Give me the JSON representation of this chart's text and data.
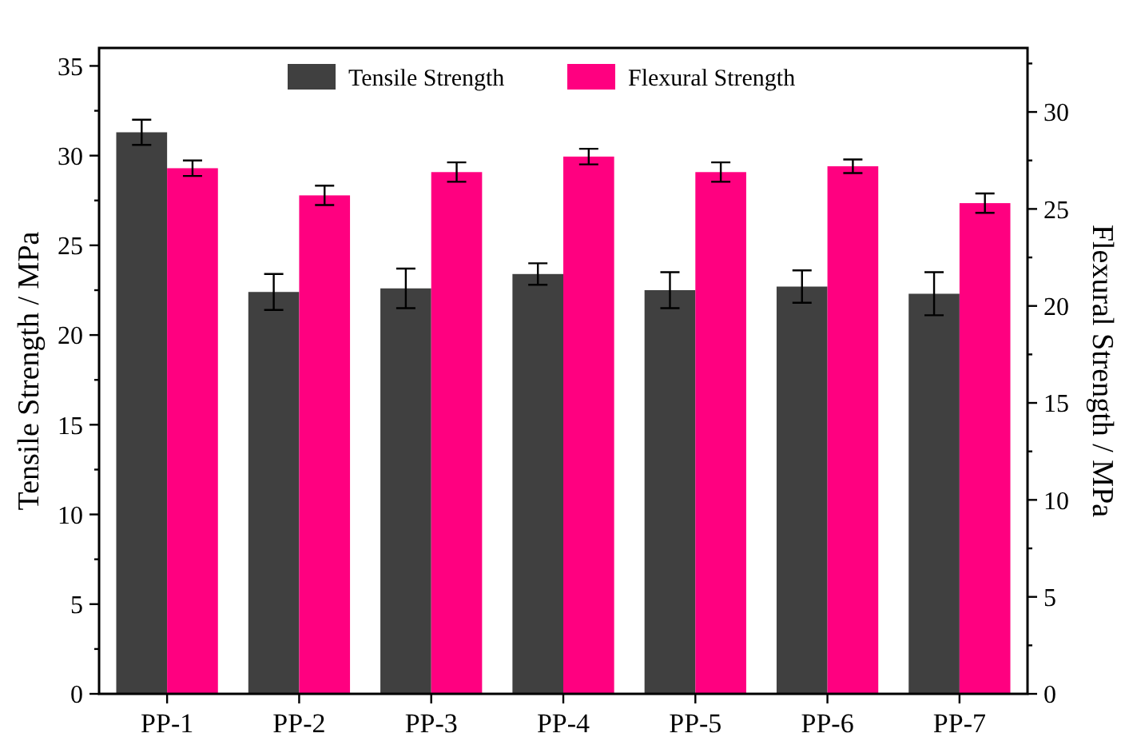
{
  "chart_data": {
    "type": "bar",
    "ylabel": "Tensile Strength / MPa",
    "y2label": "Flexural Strength / MPa",
    "categories": [
      "PP-1",
      "PP-2",
      "PP-3",
      "PP-4",
      "PP-5",
      "PP-6",
      "PP-7"
    ],
    "series": [
      {
        "name": "Tensile Strength",
        "color": "#404040",
        "values": [
          31.3,
          22.4,
          22.6,
          23.4,
          22.5,
          22.7,
          22.3
        ],
        "errors": [
          0.7,
          1.0,
          1.1,
          0.6,
          1.0,
          0.9,
          1.2
        ]
      },
      {
        "name": "Flexural Strength",
        "color": "#ff0080",
        "axis": "y2",
        "values": [
          27.1,
          25.7,
          26.9,
          27.7,
          26.9,
          27.2,
          25.3
        ],
        "errors": [
          0.4,
          0.5,
          0.5,
          0.4,
          0.5,
          0.35,
          0.5
        ]
      }
    ],
    "ylim": [
      0,
      36
    ],
    "yticks": [
      0,
      {
        "value": 2.5,
        "label": null
      },
      5,
      {
        "value": 7.5,
        "label": null
      },
      10,
      {
        "value": 12.5,
        "label": null
      },
      15,
      {
        "value": 17.5,
        "label": null
      },
      20,
      {
        "value": 22.5,
        "label": null
      },
      25,
      {
        "value": 27.5,
        "label": null
      },
      30,
      {
        "value": 32.5,
        "label": null
      },
      35
    ],
    "y2lim": [
      0,
      33.3
    ],
    "y2ticks": [
      0,
      {
        "value": 2.5,
        "label": null
      },
      5,
      {
        "value": 7.5,
        "label": null
      },
      10,
      {
        "value": 12.5,
        "label": null
      },
      15,
      {
        "value": 17.5,
        "label": null
      },
      20,
      {
        "value": 22.5,
        "label": null
      },
      25,
      {
        "value": 27.5,
        "label": null
      },
      30,
      {
        "value": 32.5,
        "label": null
      }
    ],
    "legend": "top",
    "grid": false
  }
}
